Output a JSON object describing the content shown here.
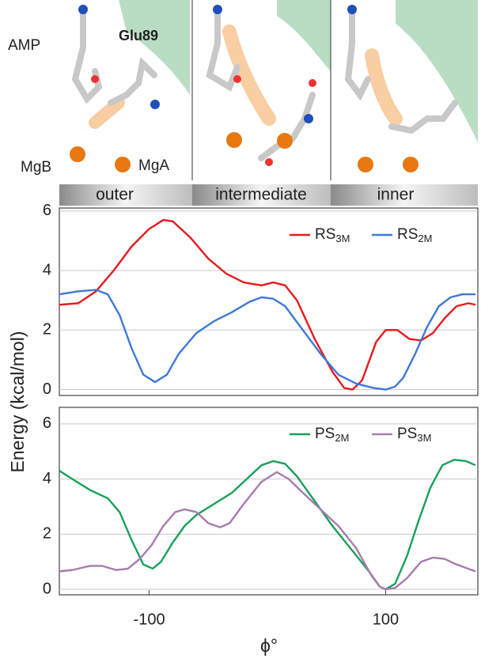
{
  "panels": {
    "labels": [
      "AMP",
      "Glu89",
      "MgB",
      "MgA"
    ]
  },
  "phase_bar": [
    "outer",
    "intermediate",
    "inner"
  ],
  "axes": {
    "ylabel": "Energy (kcal/mol)",
    "xlabel": "ϕ°"
  },
  "chart_data": [
    {
      "type": "line",
      "xlim": [
        -176,
        178
      ],
      "ylim": [
        -0.2,
        6.1
      ],
      "yticks": [
        0,
        2,
        4,
        6
      ],
      "grid": true,
      "legend": "upper right",
      "series": [
        {
          "name": "RS",
          "name_sub": "3M",
          "color": "#e8191c",
          "x": [
            -176,
            -160,
            -145,
            -130,
            -115,
            -100,
            -88,
            -80,
            -65,
            -50,
            -35,
            -20,
            -5,
            5,
            15,
            25,
            40,
            55,
            65,
            72,
            80,
            92,
            100,
            110,
            120,
            130,
            140,
            150,
            160,
            170,
            176
          ],
          "values": [
            2.85,
            2.9,
            3.3,
            4.0,
            4.8,
            5.4,
            5.7,
            5.65,
            5.1,
            4.4,
            3.9,
            3.6,
            3.5,
            3.6,
            3.5,
            3.0,
            1.7,
            0.6,
            0.05,
            0.0,
            0.3,
            1.6,
            2.0,
            2.0,
            1.7,
            1.65,
            1.9,
            2.4,
            2.8,
            2.9,
            2.85
          ]
        },
        {
          "name": "RS",
          "name_sub": "2M",
          "color": "#3d79d8",
          "x": [
            -176,
            -160,
            -145,
            -135,
            -125,
            -115,
            -105,
            -95,
            -85,
            -75,
            -60,
            -45,
            -30,
            -15,
            -5,
            5,
            15,
            30,
            45,
            60,
            75,
            90,
            100,
            108,
            115,
            125,
            135,
            145,
            155,
            165,
            176
          ],
          "values": [
            3.2,
            3.3,
            3.35,
            3.2,
            2.5,
            1.4,
            0.5,
            0.25,
            0.5,
            1.2,
            1.9,
            2.3,
            2.6,
            2.95,
            3.1,
            3.05,
            2.8,
            2.0,
            1.2,
            0.5,
            0.2,
            0.05,
            0.0,
            0.1,
            0.4,
            1.2,
            2.1,
            2.8,
            3.1,
            3.2,
            3.2
          ]
        }
      ]
    },
    {
      "type": "line",
      "xlim": [
        -176,
        178
      ],
      "ylim": [
        -0.2,
        6.6
      ],
      "yticks": [
        0,
        2,
        4,
        6
      ],
      "xticks": [
        -100,
        100
      ],
      "grid": true,
      "legend": "upper right",
      "series": [
        {
          "name": "PS",
          "name_sub": "2M",
          "color": "#18a058",
          "x": [
            -176,
            -165,
            -150,
            -135,
            -125,
            -115,
            -105,
            -97,
            -90,
            -80,
            -70,
            -60,
            -45,
            -30,
            -15,
            -5,
            5,
            15,
            25,
            40,
            55,
            70,
            85,
            95,
            100,
            108,
            118,
            128,
            138,
            148,
            158,
            168,
            176
          ],
          "values": [
            4.3,
            4.0,
            3.6,
            3.3,
            2.8,
            1.8,
            0.9,
            0.75,
            1.0,
            1.7,
            2.3,
            2.7,
            3.1,
            3.5,
            4.1,
            4.5,
            4.65,
            4.55,
            4.1,
            3.2,
            2.3,
            1.5,
            0.7,
            0.1,
            0.0,
            0.2,
            1.2,
            2.5,
            3.7,
            4.5,
            4.7,
            4.65,
            4.5
          ]
        },
        {
          "name": "PS",
          "name_sub": "3M",
          "color": "#a77bb0",
          "x": [
            -176,
            -165,
            -150,
            -140,
            -128,
            -118,
            -108,
            -98,
            -88,
            -78,
            -70,
            -60,
            -50,
            -40,
            -32,
            -20,
            -5,
            8,
            18,
            30,
            45,
            60,
            75,
            88,
            95,
            100,
            108,
            118,
            130,
            140,
            150,
            160,
            176
          ],
          "values": [
            0.65,
            0.7,
            0.85,
            0.85,
            0.7,
            0.75,
            1.1,
            1.6,
            2.3,
            2.8,
            2.9,
            2.8,
            2.4,
            2.25,
            2.4,
            3.1,
            3.9,
            4.25,
            4.0,
            3.5,
            2.9,
            2.3,
            1.5,
            0.5,
            0.1,
            0.0,
            0.05,
            0.4,
            1.0,
            1.15,
            1.1,
            0.9,
            0.65
          ]
        }
      ]
    }
  ]
}
